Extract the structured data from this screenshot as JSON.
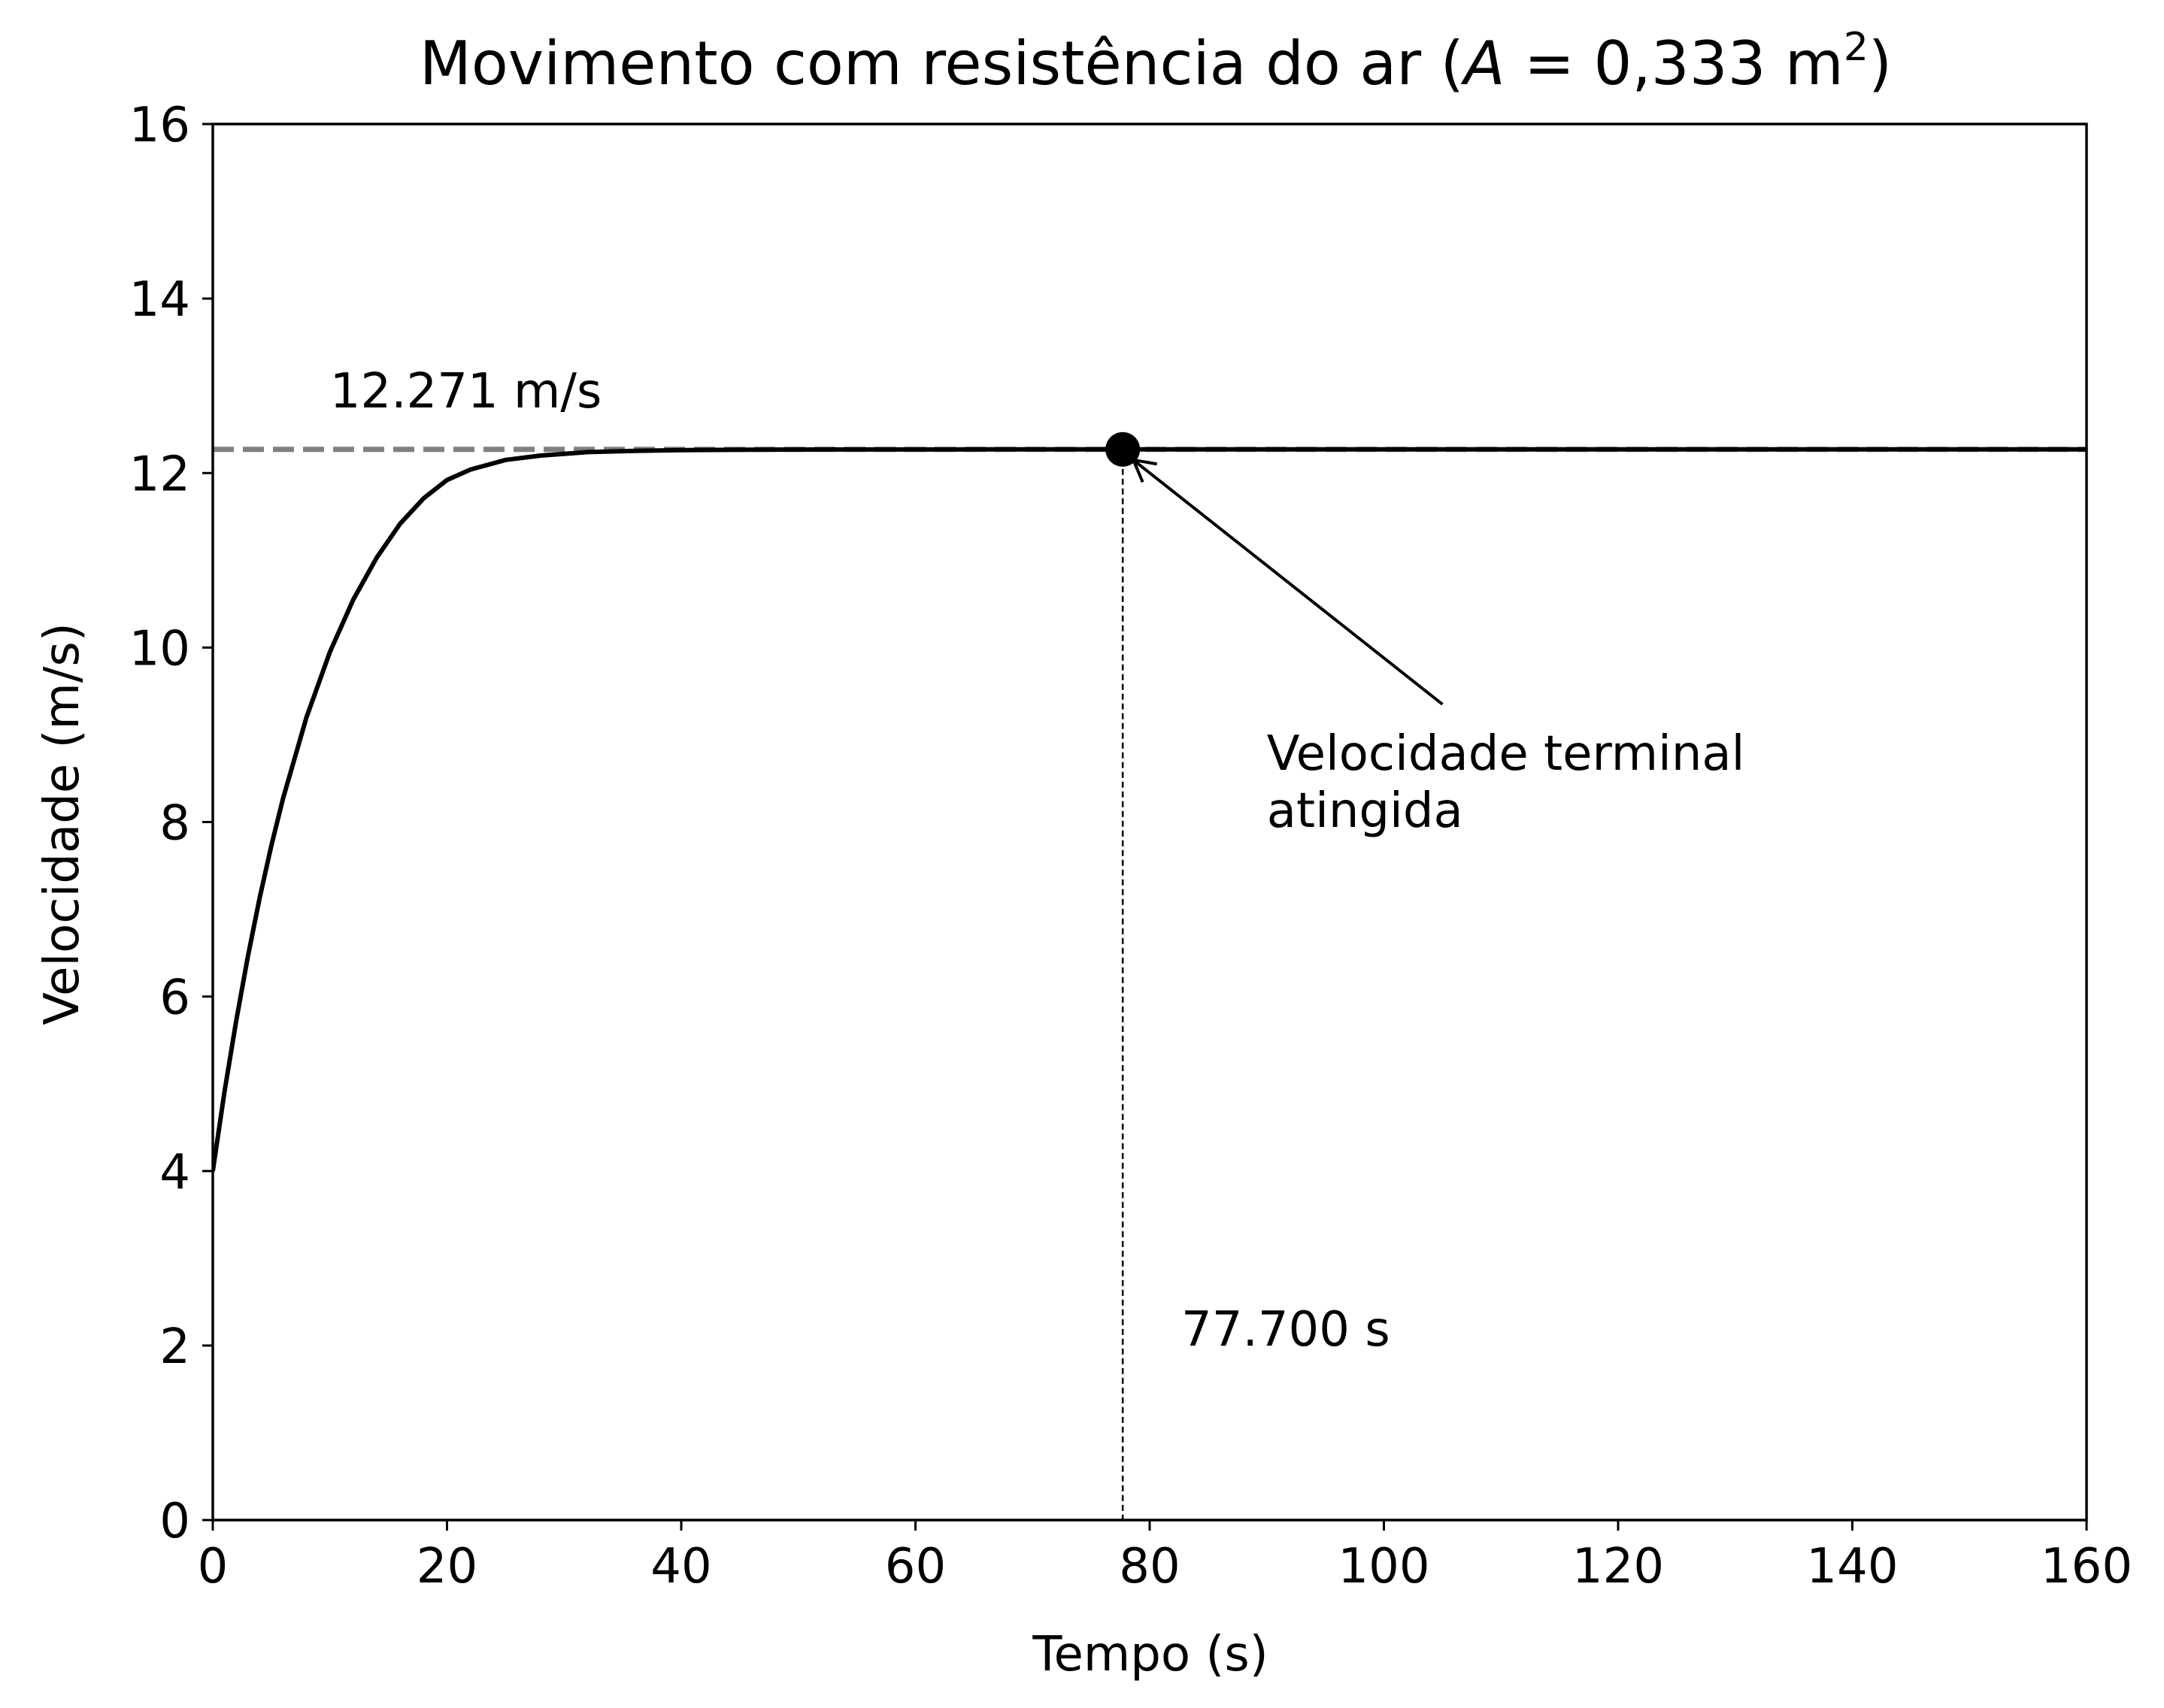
{
  "chart_data": {
    "type": "line",
    "title": "Movimento com resistência do ar (",
    "title_var": "A",
    "title_eq": " = 0,333 m",
    "title_sup": "2",
    "title_end": ")",
    "xlabel": "Tempo (s)",
    "ylabel": "Velocidade (m/s)",
    "xlim": [
      0,
      160
    ],
    "ylim": [
      0,
      16
    ],
    "xticks": [
      0,
      20,
      40,
      60,
      80,
      100,
      120,
      140,
      160
    ],
    "yticks": [
      0,
      2,
      4,
      6,
      8,
      10,
      12,
      14,
      16
    ],
    "grid": false,
    "series": [
      {
        "style": "solid",
        "color": "#000000",
        "x": [
          0,
          1,
          2,
          3,
          4,
          5,
          6,
          8,
          10,
          12,
          14,
          16,
          18,
          20,
          22,
          25,
          28,
          32,
          36,
          40,
          45,
          50,
          55,
          60,
          65,
          70,
          77.7,
          90,
          110,
          130,
          160
        ],
        "y": [
          4.0,
          4.91,
          5.72,
          6.46,
          7.13,
          7.73,
          8.27,
          9.2,
          9.95,
          10.55,
          11.03,
          11.42,
          11.71,
          11.92,
          12.04,
          12.15,
          12.2,
          12.24,
          12.255,
          12.263,
          12.267,
          12.269,
          12.27,
          12.27,
          12.271,
          12.271,
          12.271,
          12.271,
          12.271,
          12.271,
          12.271
        ]
      }
    ],
    "reference_lines": [
      {
        "orientation": "horizontal",
        "value": 12.271,
        "color": "#808080",
        "style": "dashed"
      },
      {
        "orientation": "vertical",
        "value": 77.7,
        "color": "#000000",
        "style": "dotted"
      }
    ],
    "marker": {
      "x": 77.7,
      "y": 12.271,
      "color": "#000000"
    },
    "annotations": {
      "velocity_label": "12.271 m/s",
      "velocity_label_at": {
        "x": 10,
        "y": 12.75
      },
      "time_label": "77.700 s",
      "time_label_at": {
        "x": 82.7,
        "y": 2.0
      },
      "arrow_text_line1": "Velocidade terminal",
      "arrow_text_line2": "atingida",
      "arrow_text_at": {
        "x": 90,
        "y": 8.6
      },
      "arrow_tail": {
        "x": 105,
        "y": 9.35
      },
      "arrow_head": {
        "x": 78.6,
        "y": 12.15
      }
    }
  }
}
